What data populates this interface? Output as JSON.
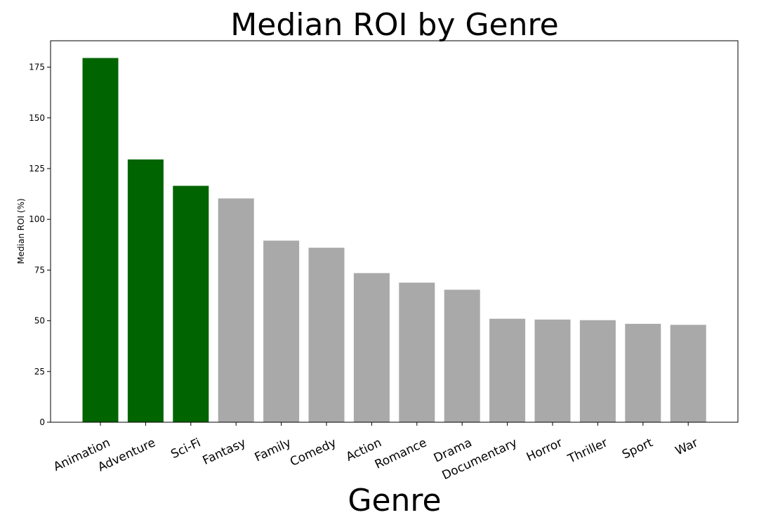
{
  "chart_data": {
    "type": "bar",
    "title": "Median ROI by Genre",
    "xlabel": "Genre",
    "ylabel": "Median ROI (%)",
    "ylim": [
      0,
      188
    ],
    "yticks": [
      0,
      25,
      50,
      75,
      100,
      125,
      150,
      175
    ],
    "categories": [
      "Animation",
      "Adventure",
      "Sci-Fi",
      "Fantasy",
      "Family",
      "Comedy",
      "Action",
      "Romance",
      "Drama",
      "Documentary",
      "Horror",
      "Thriller",
      "Sport",
      "War"
    ],
    "values": [
      179.5,
      129.5,
      116.5,
      110.3,
      89.5,
      86.0,
      73.5,
      68.8,
      65.3,
      51.0,
      50.6,
      50.3,
      48.5,
      48.0
    ],
    "bar_colors": [
      "#006400",
      "#006400",
      "#006400",
      "#a9a9a9",
      "#a9a9a9",
      "#a9a9a9",
      "#a9a9a9",
      "#a9a9a9",
      "#a9a9a9",
      "#a9a9a9",
      "#a9a9a9",
      "#a9a9a9",
      "#a9a9a9",
      "#a9a9a9"
    ],
    "grid": false,
    "legend": "none"
  }
}
